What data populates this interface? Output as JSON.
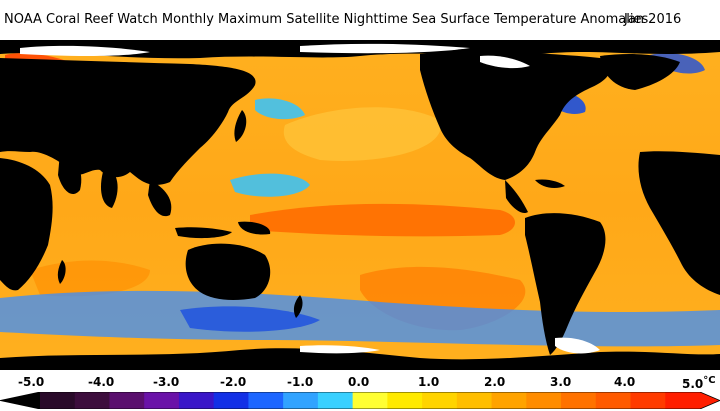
{
  "title": {
    "main": "NOAA Coral Reef Watch Monthly Maximum Satellite Nighttime Sea Surface Temperature Anomalies",
    "date": "Jan 2016"
  },
  "colors": {
    "land": "#000000",
    "ice": "#ffffff",
    "ocean_warm": "#ffb01f",
    "ocean_hot": "#ff6a00",
    "ocean_cool": "#34c3ff",
    "ocean_cold": "#1b4fe0"
  },
  "scale": {
    "unit": "°C",
    "labels": [
      "-5.0",
      "-4.0",
      "-3.0",
      "-2.0",
      "-1.0",
      "0.0",
      "1.0",
      "2.0",
      "3.0",
      "4.0",
      "5.0"
    ],
    "colors": [
      "#2a0a2a",
      "#3d0d3d",
      "#5a0f6e",
      "#6a12a8",
      "#3a16c8",
      "#1330e6",
      "#1d66ff",
      "#31a3ff",
      "#39d0ff",
      "#ffff33",
      "#ffea00",
      "#ffd400",
      "#ffbe00",
      "#ffa300",
      "#ff8c00",
      "#ff7200",
      "#ff5a00",
      "#ff3b00",
      "#ff1e00"
    ]
  }
}
